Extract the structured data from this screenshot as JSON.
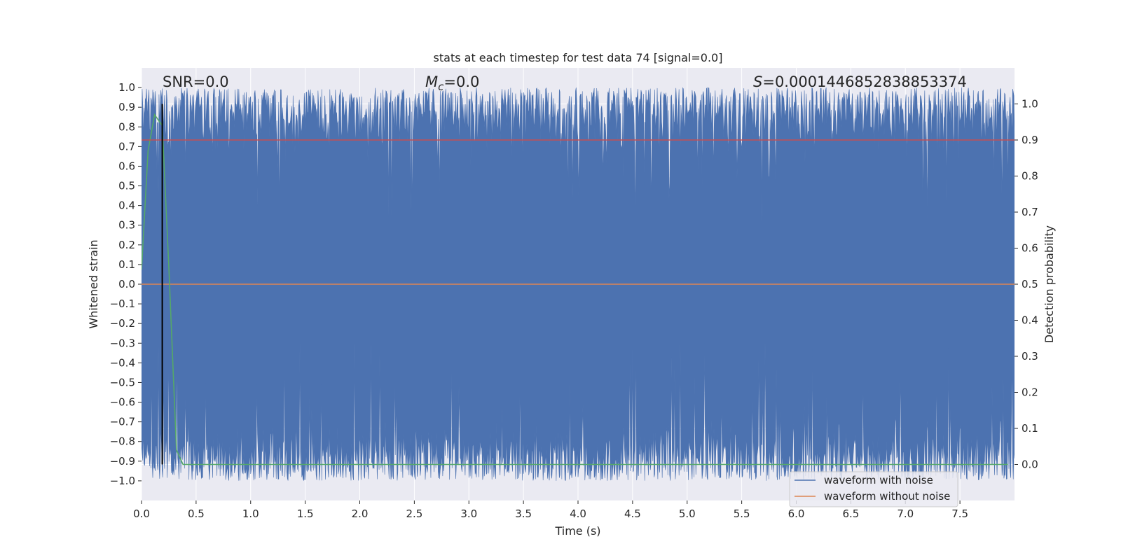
{
  "chart_data": {
    "type": "line",
    "title": "stats at each timestep for test data 74 [signal=0.0]",
    "xlabel": "Time (s)",
    "ylabel": "Whitened strain",
    "ylabel_right": "Detection probability",
    "xlim": [
      0.0,
      8.0
    ],
    "ylim": [
      -1.1,
      1.1
    ],
    "ylim_right": [
      -0.1,
      1.1
    ],
    "xticks": [
      0.0,
      0.5,
      1.0,
      1.5,
      2.0,
      2.5,
      3.0,
      3.5,
      4.0,
      4.5,
      5.0,
      5.5,
      6.0,
      6.5,
      7.0,
      7.5
    ],
    "xtick_labels": [
      "0.0",
      "0.5",
      "1.0",
      "1.5",
      "2.0",
      "2.5",
      "3.0",
      "3.5",
      "4.0",
      "4.5",
      "5.0",
      "5.5",
      "6.0",
      "6.5",
      "7.0",
      "7.5"
    ],
    "yticks": [
      1.0,
      0.9,
      0.8,
      0.7,
      0.6,
      0.5,
      0.4,
      0.3,
      0.2,
      0.1,
      0.0,
      -0.1,
      -0.2,
      -0.3,
      -0.4,
      -0.5,
      -0.6,
      -0.7,
      -0.8,
      -0.9,
      -1.0
    ],
    "ytick_labels": [
      "1.0",
      "0.9",
      "0.8",
      "0.7",
      "0.6",
      "0.5",
      "0.4",
      "0.3",
      "0.2",
      "0.1",
      "0.0",
      "−0.1",
      "−0.2",
      "−0.3",
      "−0.4",
      "−0.5",
      "−0.6",
      "−0.7",
      "−0.8",
      "−0.9",
      "−1.0"
    ],
    "yticks_right": [
      1.0,
      0.9,
      0.8,
      0.7,
      0.6,
      0.5,
      0.4,
      0.3,
      0.2,
      0.1,
      0.0
    ],
    "ytick_labels_right": [
      "1.0",
      "0.9",
      "0.8",
      "0.7",
      "0.6",
      "0.5",
      "0.4",
      "0.3",
      "0.2",
      "0.1",
      "0.0"
    ],
    "grid": true,
    "legend_position": "bottom-right",
    "annotations": {
      "snr": "SNR=0.0",
      "mc_symbol": "M",
      "mc_sub": "c",
      "mc_value": "=0.0",
      "s_symbol": "S",
      "s_value": "=0.0001446852838853374"
    },
    "series": [
      {
        "name": "waveform with noise",
        "color": "#4c72b0",
        "style": "noise band spanning approximately -1.0 to 1.0 across the full time range"
      },
      {
        "name": "waveform without noise",
        "color": "#dd8452",
        "x": [
          0.0,
          8.0
        ],
        "y": [
          0.0,
          0.0
        ]
      },
      {
        "color": "#55a868",
        "axis": "right",
        "x": [
          0.0,
          0.06,
          0.12,
          0.19,
          0.25,
          0.32,
          0.38,
          0.5,
          1.0,
          2.0,
          3.0,
          4.0,
          5.0,
          6.0,
          7.0,
          7.94
        ],
        "y": [
          0.54,
          0.87,
          0.97,
          0.94,
          0.55,
          0.04,
          0.0,
          0.0,
          0.0,
          0.0,
          0.0,
          0.0,
          0.0,
          0.0,
          0.0,
          0.0
        ]
      },
      {
        "color": "#c44e52",
        "axis": "right",
        "x": [
          0.0,
          8.0
        ],
        "y": [
          0.9,
          0.9
        ]
      }
    ],
    "vertical_marker": {
      "x": 0.19,
      "color": "#000000"
    }
  }
}
